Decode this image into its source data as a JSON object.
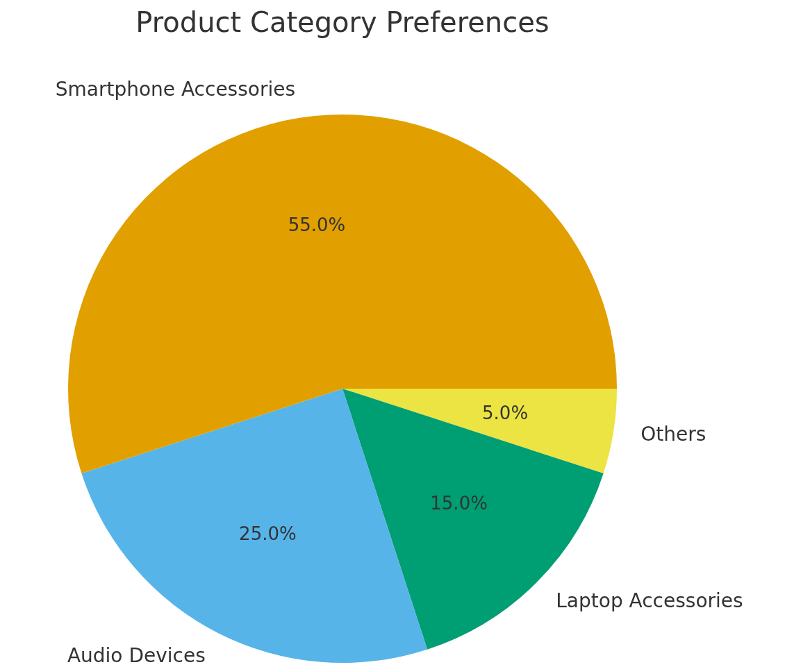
{
  "chart_data": {
    "type": "pie",
    "title": "Product Category Preferences",
    "categories": [
      "Others",
      "Laptop Accessories",
      "Audio Devices",
      "Smartphone Accessories"
    ],
    "values": [
      5,
      15,
      25,
      55
    ],
    "value_labels": [
      "5.0%",
      "15.0%",
      "25.0%",
      "55.0%"
    ],
    "colors": [
      "#ece442",
      "#009e73",
      "#56b4e9",
      "#e1a000"
    ],
    "legend": false
  }
}
